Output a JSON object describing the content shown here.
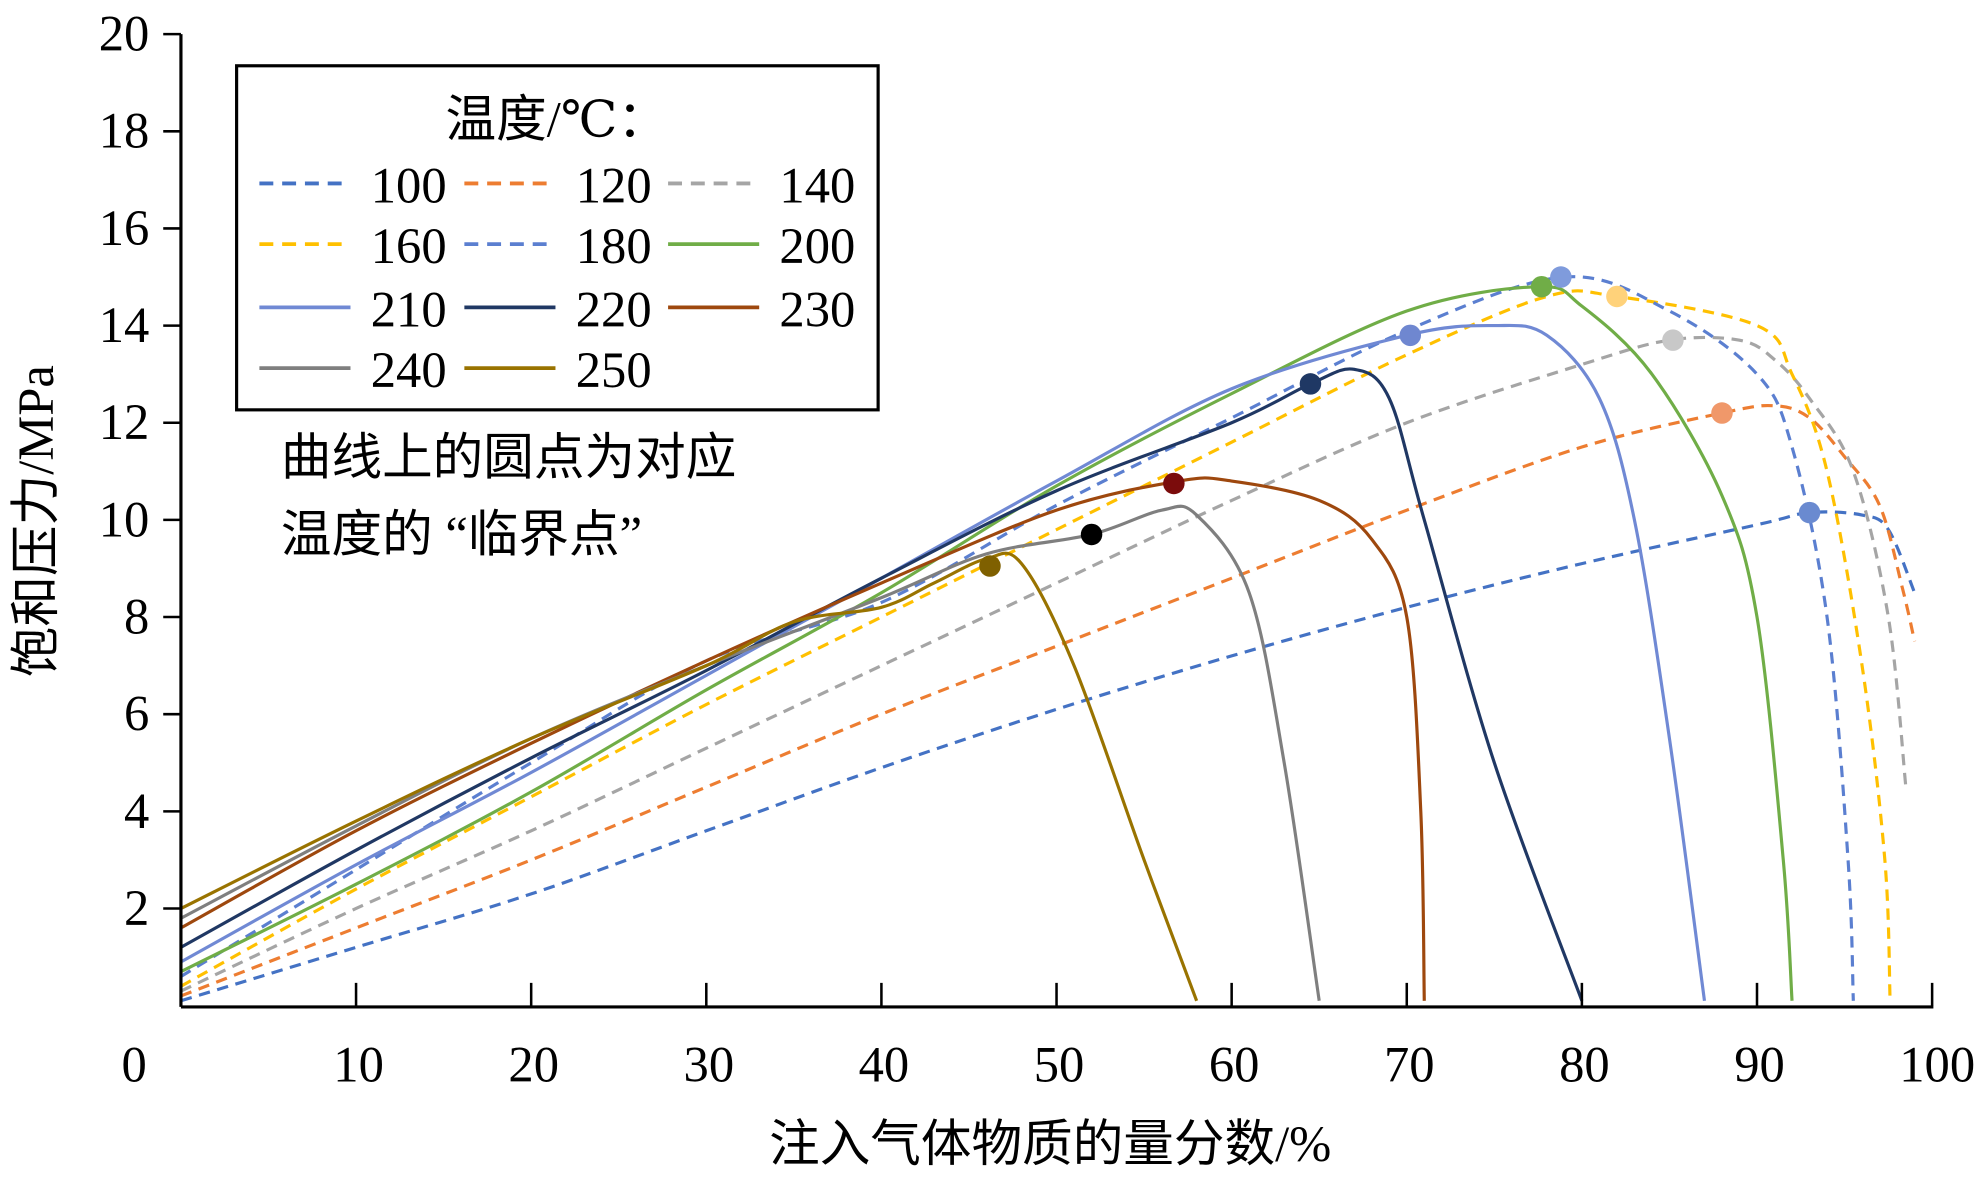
{
  "chart_data": {
    "type": "line",
    "title": "",
    "xlabel": "注入气体物质的量分数/%",
    "ylabel": "饱和压力/MPa",
    "xlim": [
      0,
      100
    ],
    "ylim": [
      0,
      20
    ],
    "xticks": [
      "0",
      "10",
      "20",
      "30",
      "40",
      "50",
      "60",
      "70",
      "80",
      "90",
      "100"
    ],
    "yticks": [
      "2",
      "4",
      "6",
      "8",
      "10",
      "12",
      "14",
      "16",
      "18",
      "20"
    ],
    "legend_title": "温度/℃：",
    "legend_position": "top-left",
    "annotation": [
      "曲线上的圆点为对应",
      "温度的 “临界点”"
    ],
    "series": [
      {
        "name": "100",
        "color": "#4472C4",
        "dashed": true,
        "points": [
          [
            0,
            0.1
          ],
          [
            10,
            1.2
          ],
          [
            20,
            2.3
          ],
          [
            30,
            3.6
          ],
          [
            40,
            4.9
          ],
          [
            50,
            6.1
          ],
          [
            60,
            7.2
          ],
          [
            70,
            8.2
          ],
          [
            80,
            9.1
          ],
          [
            90,
            9.9
          ],
          [
            93,
            10.15
          ],
          [
            96,
            10.1
          ],
          [
            97.5,
            9.8
          ],
          [
            99,
            8.5
          ]
        ],
        "critical": [
          93,
          10.15
        ],
        "critical_color": "#6A8AD0"
      },
      {
        "name": "120",
        "color": "#ED7D31",
        "dashed": true,
        "points": [
          [
            0,
            0.2
          ],
          [
            10,
            1.6
          ],
          [
            20,
            3.0
          ],
          [
            30,
            4.5
          ],
          [
            40,
            6.0
          ],
          [
            50,
            7.4
          ],
          [
            60,
            8.8
          ],
          [
            70,
            10.2
          ],
          [
            80,
            11.5
          ],
          [
            88,
            12.2
          ],
          [
            91,
            12.35
          ],
          [
            93,
            12.1
          ],
          [
            95,
            11.3
          ],
          [
            97,
            10.3
          ],
          [
            98.3,
            8.6
          ],
          [
            99,
            7.5
          ]
        ],
        "critical": [
          88,
          12.2
        ],
        "critical_color": "#F0986A"
      },
      {
        "name": "140",
        "color": "#A5A5A5",
        "dashed": true,
        "points": [
          [
            0,
            0.3
          ],
          [
            10,
            2.0
          ],
          [
            20,
            3.6
          ],
          [
            30,
            5.3
          ],
          [
            40,
            7.0
          ],
          [
            50,
            8.7
          ],
          [
            60,
            10.4
          ],
          [
            70,
            12.0
          ],
          [
            80,
            13.2
          ],
          [
            85,
            13.7
          ],
          [
            89,
            13.7
          ],
          [
            91,
            13.3
          ],
          [
            93,
            12.5
          ],
          [
            95.5,
            11
          ],
          [
            97.5,
            8
          ],
          [
            98.5,
            4.5
          ]
        ],
        "critical": [
          85.2,
          13.7
        ],
        "critical_color": "#C8C8C8"
      },
      {
        "name": "160",
        "color": "#FFC000",
        "dashed": true,
        "points": [
          [
            0,
            0.4
          ],
          [
            10,
            2.4
          ],
          [
            20,
            4.3
          ],
          [
            30,
            6.2
          ],
          [
            40,
            8.0
          ],
          [
            50,
            9.8
          ],
          [
            60,
            11.6
          ],
          [
            70,
            13.4
          ],
          [
            78,
            14.6
          ],
          [
            82,
            14.6
          ],
          [
            90,
            14.0
          ],
          [
            92,
            13.0
          ],
          [
            94,
            11.0
          ],
          [
            96,
            7.0
          ],
          [
            97.3,
            3
          ],
          [
            97.6,
            0.1
          ]
        ],
        "critical": [
          82,
          14.6
        ],
        "critical_color": "#FFD27A"
      },
      {
        "name": "180",
        "color": "#5B7FD0",
        "dashed": true,
        "points": [
          [
            0,
            0.6
          ],
          [
            10,
            2.8
          ],
          [
            20,
            5.0
          ],
          [
            30,
            7.1
          ],
          [
            40,
            8.3
          ],
          [
            50,
            10.3
          ],
          [
            60,
            12.1
          ],
          [
            70,
            13.9
          ],
          [
            79,
            15.0
          ],
          [
            85,
            14.3
          ],
          [
            90,
            13.0
          ],
          [
            92,
            11.5
          ],
          [
            94,
            8
          ],
          [
            95.2,
            3
          ],
          [
            95.5,
            0.1
          ]
        ],
        "critical": [
          78.8,
          15.0
        ],
        "critical_color": "#7F9BDC"
      },
      {
        "name": "200",
        "color": "#70AD47",
        "dashed": false,
        "points": [
          [
            0,
            0.7
          ],
          [
            10,
            2.5
          ],
          [
            20,
            4.4
          ],
          [
            30,
            6.5
          ],
          [
            40,
            8.5
          ],
          [
            50,
            10.7
          ],
          [
            60,
            12.6
          ],
          [
            70,
            14.3
          ],
          [
            77.5,
            14.8
          ],
          [
            80,
            14.4
          ],
          [
            84,
            13.0
          ],
          [
            88,
            10.5
          ],
          [
            90,
            8.0
          ],
          [
            91.5,
            3
          ],
          [
            92,
            0.1
          ]
        ],
        "critical": [
          77.7,
          14.8
        ],
        "critical_color": "#70AD47"
      },
      {
        "name": "210",
        "color": "#7089D4",
        "dashed": false,
        "points": [
          [
            0,
            0.9
          ],
          [
            10,
            2.9
          ],
          [
            20,
            4.8
          ],
          [
            30,
            6.8
          ],
          [
            40,
            8.8
          ],
          [
            50,
            10.8
          ],
          [
            60,
            12.7
          ],
          [
            70,
            13.8
          ],
          [
            75,
            14.0
          ],
          [
            78,
            13.8
          ],
          [
            81,
            12.5
          ],
          [
            83,
            10
          ],
          [
            85,
            5.5
          ],
          [
            87,
            0.1
          ]
        ],
        "critical": [
          70.2,
          13.8
        ],
        "critical_color": "#6F87D0"
      },
      {
        "name": "220",
        "color": "#203864",
        "dashed": false,
        "points": [
          [
            0,
            1.2
          ],
          [
            10,
            3.2
          ],
          [
            20,
            5.1
          ],
          [
            30,
            6.9
          ],
          [
            40,
            8.8
          ],
          [
            50,
            10.6
          ],
          [
            60,
            12.0
          ],
          [
            64.5,
            12.8
          ],
          [
            67,
            13.1
          ],
          [
            69,
            12.5
          ],
          [
            71,
            10
          ],
          [
            75,
            5
          ],
          [
            80,
            0.1
          ]
        ],
        "critical": [
          64.5,
          12.8
        ],
        "critical_color": "#1F3864"
      },
      {
        "name": "230",
        "color": "#9E480E",
        "dashed": false,
        "points": [
          [
            0,
            1.6
          ],
          [
            10,
            3.6
          ],
          [
            20,
            5.4
          ],
          [
            30,
            7.1
          ],
          [
            40,
            8.7
          ],
          [
            50,
            10.2
          ],
          [
            57,
            10.8
          ],
          [
            60,
            10.8
          ],
          [
            65,
            10.4
          ],
          [
            68,
            9.6
          ],
          [
            70,
            8
          ],
          [
            70.8,
            4
          ],
          [
            71,
            0.1
          ]
        ],
        "critical": [
          56.7,
          10.75
        ],
        "critical_color": "#7B0C0C"
      },
      {
        "name": "240",
        "color": "#7F7F7F",
        "dashed": false,
        "points": [
          [
            0,
            1.8
          ],
          [
            10,
            3.7
          ],
          [
            20,
            5.5
          ],
          [
            30,
            7.0
          ],
          [
            40,
            8.4
          ],
          [
            46,
            9.3
          ],
          [
            52,
            9.7
          ],
          [
            56,
            10.2
          ],
          [
            58,
            10.1
          ],
          [
            61,
            8.5
          ],
          [
            63,
            5
          ],
          [
            65,
            0.1
          ]
        ],
        "critical": [
          52,
          9.7
        ],
        "critical_color": "#000000"
      },
      {
        "name": "250",
        "color": "#997300",
        "dashed": false,
        "points": [
          [
            0,
            2.0
          ],
          [
            10,
            3.8
          ],
          [
            20,
            5.5
          ],
          [
            30,
            7.0
          ],
          [
            35,
            7.9
          ],
          [
            40,
            8.2
          ],
          [
            43,
            8.7
          ],
          [
            46,
            9.2
          ],
          [
            48,
            9.1
          ],
          [
            51,
            7
          ],
          [
            55,
            3
          ],
          [
            58,
            0.1
          ]
        ],
        "critical": [
          46.2,
          9.05
        ],
        "critical_color": "#7F6000"
      }
    ]
  }
}
